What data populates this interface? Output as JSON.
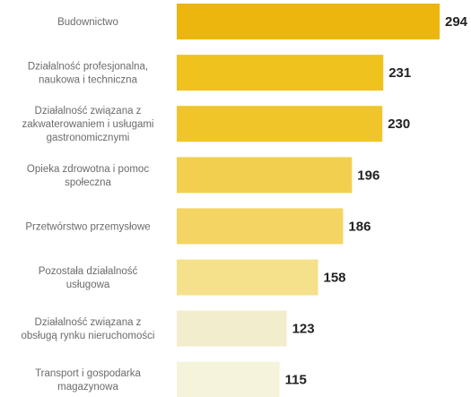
{
  "chart_data": {
    "type": "bar",
    "orientation": "horizontal",
    "categories": [
      "Budownictwo",
      "Działalność profesjonalna, naukowa i techniczna",
      "Działalność związana z zakwaterowaniem i usługami gastronomicznymi",
      "Opieka zdrowotna i pomoc społeczna",
      "Przetwórstwo przemysłowe",
      "Pozostała działalność usługowa",
      "Działalność związana z obsługą rynku nieruchomości",
      "Transport i gospodarka magazynowa"
    ],
    "category_lines": [
      [
        "Budownictwo"
      ],
      [
        "Działalność profesjonalna,",
        "naukowa i techniczna"
      ],
      [
        "Działalność związana z",
        "zakwaterowaniem i usługami",
        "gastronomicznymi"
      ],
      [
        "Opieka zdrowotna i pomoc",
        "społeczna"
      ],
      [
        "Przetwórstwo przemysłowe"
      ],
      [
        "Pozostała działalność",
        "usługowa"
      ],
      [
        "Działalność związana z",
        "obsługą rynku nieruchomości"
      ],
      [
        "Transport i gospodarka",
        "magazynowa"
      ]
    ],
    "values": [
      294,
      231,
      230,
      196,
      186,
      158,
      123,
      115
    ],
    "bar_colors": [
      "#edb60f",
      "#f0c21e",
      "#f0c52a",
      "#f2cf4f",
      "#f4d563",
      "#f5e08c",
      "#f2edcc",
      "#f6f3dc"
    ],
    "title": "",
    "xlabel": "",
    "ylabel": "",
    "xlim": [
      0,
      294
    ],
    "grid": false,
    "legend": "none"
  }
}
